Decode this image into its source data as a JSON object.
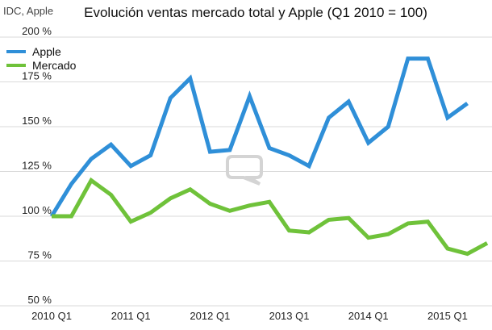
{
  "source_note": "IDC, Apple",
  "chart_data": {
    "type": "line",
    "title": "Evolución ventas mercado total y Apple (Q1 2010 = 100)",
    "xlabel": "",
    "ylabel": "",
    "ylim": [
      50,
      200
    ],
    "yticks": [
      "50 %",
      "75 %",
      "100 %",
      "125 %",
      "150 %",
      "175 %",
      "200 %"
    ],
    "ytick_values": [
      50,
      75,
      100,
      125,
      150,
      175,
      200
    ],
    "xtick_labels": [
      "2010 Q1",
      "2011 Q1",
      "2012 Q1",
      "2013 Q1",
      "2014 Q1",
      "2015 Q1"
    ],
    "xtick_indices": [
      0,
      4,
      8,
      12,
      16,
      20
    ],
    "grid": true,
    "legend_position": "top-left",
    "categories": [
      "Q1 2010",
      "Q2 2010",
      "Q3 2010",
      "Q4 2010",
      "Q1 2011",
      "Q2 2011",
      "Q3 2011",
      "Q4 2011",
      "Q1 2012",
      "Q2 2012",
      "Q3 2012",
      "Q4 2012",
      "Q1 2013",
      "Q2 2013",
      "Q3 2013",
      "Q4 2013",
      "Q1 2014",
      "Q2 2014",
      "Q3 2014",
      "Q4 2014",
      "Q1 2015",
      "Q2 2015",
      "Q3 2015"
    ],
    "series": [
      {
        "name": "Apple",
        "color": "#2f8fd8",
        "values": [
          100,
          118,
          132,
          140,
          128,
          134,
          166,
          177,
          136,
          137,
          167,
          138,
          134,
          128,
          155,
          164,
          141,
          150,
          188,
          188,
          155,
          163,
          null
        ]
      },
      {
        "name": "Mercado",
        "color": "#6fc23a",
        "values": [
          100,
          100,
          120,
          112,
          97,
          102,
          110,
          115,
          107,
          103,
          106,
          108,
          92,
          91,
          98,
          99,
          88,
          90,
          96,
          97,
          82,
          79,
          85
        ]
      }
    ]
  }
}
